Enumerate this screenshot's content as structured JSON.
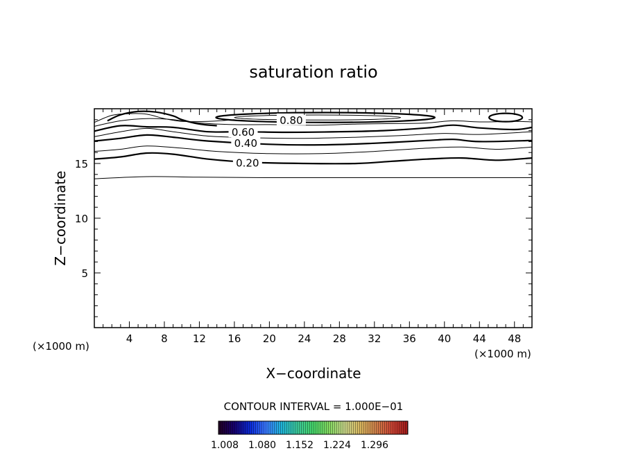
{
  "chart_data": {
    "type": "contour",
    "title": "saturation ratio",
    "xlabel": "X−coordinate",
    "ylabel": "Z−coordinate",
    "x_unit_left": "(×1000 m)",
    "x_unit_right": "(×1000 m)",
    "xlim": [
      0,
      50
    ],
    "ylim": [
      0,
      20
    ],
    "xticks": [
      4,
      8,
      12,
      16,
      20,
      24,
      28,
      32,
      36,
      40,
      44,
      48
    ],
    "xtick_labels": [
      "4",
      "8",
      "12",
      "16",
      "20",
      "24",
      "28",
      "32",
      "36",
      "40",
      "44",
      "48"
    ],
    "yticks": [
      5,
      10,
      15
    ],
    "ytick_labels": [
      "5",
      "10",
      "15"
    ],
    "contour_interval_text": "CONTOUR INTERVAL = 1.000E−01",
    "contour_labels": [
      {
        "text": "0.80",
        "x": 22.5,
        "z": 19.0
      },
      {
        "text": "0.60",
        "x": 17.0,
        "z": 17.9
      },
      {
        "text": "0.40",
        "x": 17.3,
        "z": 16.9
      },
      {
        "text": "0.20",
        "x": 17.5,
        "z": 15.1
      }
    ],
    "contours": [
      {
        "level": 0.1,
        "bold": false,
        "points": [
          [
            0,
            13.6
          ],
          [
            6,
            13.8
          ],
          [
            12,
            13.75
          ],
          [
            20,
            13.7
          ],
          [
            30,
            13.7
          ],
          [
            40,
            13.7
          ],
          [
            50,
            13.7
          ]
        ]
      },
      {
        "level": 0.2,
        "bold": true,
        "points": [
          [
            0,
            15.4
          ],
          [
            3,
            15.6
          ],
          [
            6,
            15.95
          ],
          [
            9,
            15.85
          ],
          [
            13,
            15.4
          ],
          [
            18,
            15.1
          ],
          [
            24,
            15.0
          ],
          [
            30,
            15.0
          ],
          [
            34,
            15.2
          ],
          [
            38,
            15.4
          ],
          [
            42,
            15.5
          ],
          [
            46,
            15.3
          ],
          [
            50,
            15.5
          ]
        ]
      },
      {
        "level": 0.3,
        "bold": false,
        "points": [
          [
            0,
            16.1
          ],
          [
            3,
            16.3
          ],
          [
            6,
            16.6
          ],
          [
            10,
            16.4
          ],
          [
            14,
            16.1
          ],
          [
            20,
            15.9
          ],
          [
            26,
            15.9
          ],
          [
            32,
            16.1
          ],
          [
            38,
            16.4
          ],
          [
            42,
            16.5
          ],
          [
            46,
            16.3
          ],
          [
            50,
            16.5
          ]
        ]
      },
      {
        "level": 0.4,
        "bold": true,
        "points": [
          [
            0,
            17.05
          ],
          [
            3,
            17.3
          ],
          [
            6,
            17.6
          ],
          [
            9,
            17.4
          ],
          [
            13,
            17.05
          ],
          [
            20,
            16.75
          ],
          [
            26,
            16.7
          ],
          [
            32,
            16.85
          ],
          [
            38,
            17.1
          ],
          [
            41,
            17.2
          ],
          [
            44,
            17.0
          ],
          [
            50,
            17.1
          ]
        ]
      },
      {
        "level": 0.5,
        "bold": false,
        "points": [
          [
            0,
            17.45
          ],
          [
            3,
            17.9
          ],
          [
            6,
            18.2
          ],
          [
            9,
            17.9
          ],
          [
            13,
            17.5
          ],
          [
            18,
            17.35
          ],
          [
            24,
            17.3
          ],
          [
            30,
            17.4
          ],
          [
            35,
            17.55
          ],
          [
            40,
            17.75
          ],
          [
            44,
            17.65
          ],
          [
            50,
            17.9
          ]
        ]
      },
      {
        "level": 0.6,
        "bold": true,
        "points": [
          [
            0,
            17.95
          ],
          [
            3,
            18.45
          ],
          [
            6,
            18.35
          ],
          [
            9,
            18.3
          ],
          [
            13,
            17.9
          ],
          [
            17,
            17.9
          ],
          [
            22,
            17.85
          ],
          [
            28,
            17.9
          ],
          [
            33,
            18.0
          ],
          [
            38,
            18.25
          ],
          [
            41,
            18.5
          ],
          [
            44,
            18.25
          ],
          [
            48,
            18.1
          ],
          [
            50,
            18.3
          ]
        ]
      },
      {
        "level": 0.7,
        "bold": false,
        "points": [
          [
            0,
            18.4
          ],
          [
            3,
            18.9
          ],
          [
            6,
            19.1
          ],
          [
            9,
            19.0
          ],
          [
            12,
            18.7
          ],
          [
            16,
            18.55
          ],
          [
            20,
            18.55
          ],
          [
            25,
            18.5
          ],
          [
            30,
            18.6
          ],
          [
            35,
            18.65
          ],
          [
            38,
            18.7
          ],
          [
            41,
            18.9
          ],
          [
            44,
            18.8
          ],
          [
            48,
            18.85
          ],
          [
            50,
            18.8
          ]
        ]
      },
      {
        "level": 0.7,
        "bold": false,
        "points": [
          [
            0,
            18.75
          ],
          [
            2,
            19.4
          ],
          [
            4,
            19.55
          ],
          [
            6,
            19.5
          ],
          [
            8,
            19.1
          ],
          [
            10,
            18.85
          ],
          [
            13,
            18.85
          ],
          [
            16,
            19.0
          ]
        ]
      },
      {
        "level": 0.8,
        "bold": true,
        "points": [
          [
            1.5,
            18.9
          ],
          [
            3,
            19.45
          ],
          [
            5,
            19.75
          ],
          [
            7,
            19.7
          ],
          [
            9,
            19.35
          ],
          [
            10,
            19.0
          ],
          [
            12,
            18.6
          ],
          [
            14,
            18.45
          ]
        ]
      }
    ],
    "closed_contours": [
      {
        "level": 0.8,
        "bold": true,
        "cx": 26.4,
        "cz": 19.2,
        "rx": 12.5,
        "rz": 0.45
      },
      {
        "level": 0.9,
        "bold": false,
        "cx": 25.5,
        "cz": 19.2,
        "rx": 9.5,
        "rz": 0.23
      },
      {
        "level": 0.9,
        "bold": true,
        "cx": 47.0,
        "cz": 19.2,
        "rx": 1.9,
        "rz": 0.38
      }
    ],
    "colorbar": {
      "colormap": [
        "#220022",
        "#16006e",
        "#0a2ad8",
        "#3a78ff",
        "#1fb4d8",
        "#3cc89a",
        "#45d46a",
        "#82d860",
        "#c8d68a",
        "#d8b65e",
        "#d0804a",
        "#cc4434",
        "#a01a1a"
      ],
      "tick_labels": [
        "1.008",
        "1.080",
        "1.152",
        "1.224",
        "1.296"
      ]
    }
  }
}
